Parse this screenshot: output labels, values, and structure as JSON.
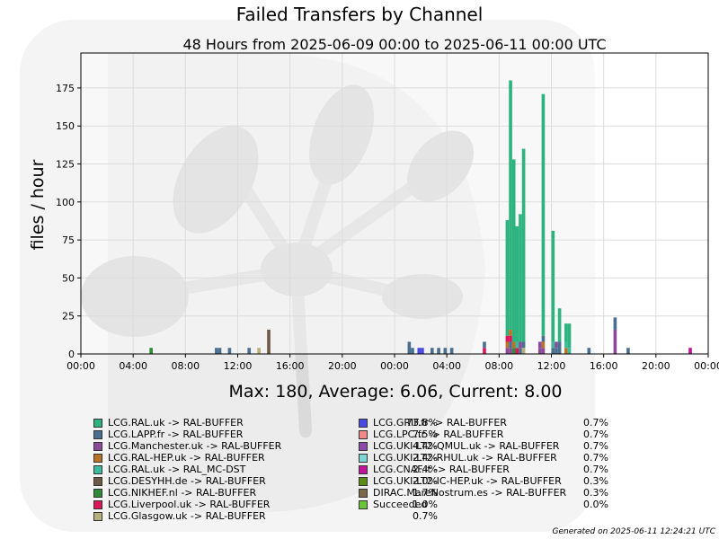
{
  "page": {
    "footer": "Generated on 2025-06-11 12:24:21 UTC",
    "stats_text": "Max: 180, Average: 6.06, Current: 8.00"
  },
  "chart_data": {
    "type": "bar",
    "stacked": true,
    "title": "Failed Transfers by Channel",
    "subtitle": "48 Hours from 2025-06-09 00:00 to 2025-06-11 00:00 UTC",
    "ylabel": "files / hour",
    "xlabel": "",
    "ylim": [
      0,
      198
    ],
    "yticks": [
      0,
      25,
      50,
      75,
      100,
      125,
      150,
      175
    ],
    "xlim": [
      0,
      48
    ],
    "xticks": [
      0,
      4,
      8,
      12,
      16,
      20,
      24,
      28,
      32,
      36,
      40,
      44,
      48
    ],
    "xtick_labels": [
      "00:00",
      "04:00",
      "08:00",
      "12:00",
      "16:00",
      "20:00",
      "00:00",
      "04:00",
      "08:00",
      "12:00",
      "16:00",
      "20:00",
      "00:00"
    ],
    "bin_hours": 0.25,
    "grid": true,
    "summary": {
      "max": 180,
      "average": 6.06,
      "current": 8.0
    },
    "legend": [
      {
        "label": "LCG.RAL.uk -> RAL-BUFFER",
        "percent": "73.8%",
        "color": "#2db37f"
      },
      {
        "label": "LCG.LAPP.fr -> RAL-BUFFER",
        "percent": "7.5%",
        "color": "#4a6f91"
      },
      {
        "label": "LCG.Manchester.uk -> RAL-BUFFER",
        "percent": "4.4%",
        "color": "#8a4a97"
      },
      {
        "label": "LCG.RAL-HEP.uk -> RAL-BUFFER",
        "percent": "2.4%",
        "color": "#b87324"
      },
      {
        "label": "LCG.RAL.uk -> RAL_MC-DST",
        "percent": "2.4%",
        "color": "#3cba9d"
      },
      {
        "label": "LCG.DESYHH.de -> RAL-BUFFER",
        "percent": "2.0%",
        "color": "#6f5a48"
      },
      {
        "label": "LCG.NIKHEF.nl -> RAL-BUFFER",
        "percent": "1.7%",
        "color": "#2e8b3a"
      },
      {
        "label": "LCG.Liverpool.uk -> RAL-BUFFER",
        "percent": "1.0%",
        "color": "#e0145a"
      },
      {
        "label": "LCG.Glasgow.uk -> RAL-BUFFER",
        "percent": "0.7%",
        "color": "#b8b07c"
      },
      {
        "label": "LCG.GRIF.fr -> RAL-BUFFER",
        "percent": "0.7%",
        "color": "#4a4ae0"
      },
      {
        "label": "LCG.LPC.fr -> RAL-BUFFER",
        "percent": "0.7%",
        "color": "#f08a8a"
      },
      {
        "label": "LCG.UKI-LT2-QMUL.uk -> RAL-BUFFER",
        "percent": "0.7%",
        "color": "#8a4aa8"
      },
      {
        "label": "LCG.UKI-LT2-RHUL.uk -> RAL-BUFFER",
        "percent": "0.7%",
        "color": "#7fd4d4"
      },
      {
        "label": "LCG.CNAF.it -> RAL-BUFFER",
        "percent": "0.7%",
        "color": "#c0149a"
      },
      {
        "label": "LCG.UKI-LT2-IC-HEP.uk -> RAL-BUFFER",
        "percent": "0.3%",
        "color": "#5a8a1a"
      },
      {
        "label": "DIRAC.MareNostrum.es -> RAL-BUFFER",
        "percent": "0.3%",
        "color": "#7a6a4a"
      },
      {
        "label": "Succeeded",
        "percent": "0.0%",
        "color": "#6cc23a"
      }
    ],
    "bars": [
      {
        "t": 5.25,
        "segs": [
          [
            6,
            4
          ]
        ]
      },
      {
        "t": 10.25,
        "segs": [
          [
            1,
            4
          ]
        ]
      },
      {
        "t": 10.5,
        "segs": [
          [
            1,
            4
          ]
        ]
      },
      {
        "t": 11.25,
        "segs": [
          [
            1,
            4
          ]
        ]
      },
      {
        "t": 12.75,
        "segs": [
          [
            1,
            4
          ]
        ]
      },
      {
        "t": 13.5,
        "segs": [
          [
            8,
            4
          ]
        ]
      },
      {
        "t": 14.25,
        "segs": [
          [
            5,
            16
          ]
        ]
      },
      {
        "t": 25.0,
        "segs": [
          [
            1,
            8
          ]
        ]
      },
      {
        "t": 25.25,
        "segs": [
          [
            1,
            4
          ]
        ]
      },
      {
        "t": 25.75,
        "segs": [
          [
            9,
            4
          ]
        ]
      },
      {
        "t": 26.0,
        "segs": [
          [
            9,
            4
          ]
        ]
      },
      {
        "t": 26.75,
        "segs": [
          [
            1,
            4
          ]
        ]
      },
      {
        "t": 27.25,
        "segs": [
          [
            1,
            4
          ]
        ]
      },
      {
        "t": 27.75,
        "segs": [
          [
            1,
            4
          ]
        ]
      },
      {
        "t": 28.25,
        "segs": [
          [
            1,
            4
          ]
        ]
      },
      {
        "t": 30.75,
        "segs": [
          [
            7,
            4
          ],
          [
            1,
            4
          ]
        ]
      },
      {
        "t": 32.5,
        "segs": [
          [
            2,
            4
          ],
          [
            3,
            4
          ],
          [
            7,
            4
          ],
          [
            0,
            76
          ]
        ]
      },
      {
        "t": 32.75,
        "segs": [
          [
            2,
            4
          ],
          [
            1,
            4
          ],
          [
            7,
            4
          ],
          [
            3,
            4
          ],
          [
            0,
            164
          ]
        ]
      },
      {
        "t": 33.0,
        "segs": [
          [
            6,
            4
          ],
          [
            3,
            4
          ],
          [
            0,
            120
          ]
        ]
      },
      {
        "t": 33.25,
        "segs": [
          [
            7,
            4
          ],
          [
            4,
            4
          ],
          [
            0,
            76
          ]
        ]
      },
      {
        "t": 33.5,
        "segs": [
          [
            1,
            4
          ],
          [
            2,
            4
          ],
          [
            0,
            84
          ]
        ]
      },
      {
        "t": 33.75,
        "segs": [
          [
            8,
            4
          ],
          [
            1,
            4
          ],
          [
            0,
            127
          ]
        ]
      },
      {
        "t": 35.0,
        "segs": [
          [
            2,
            4
          ],
          [
            11,
            4
          ]
        ]
      },
      {
        "t": 35.25,
        "segs": [
          [
            2,
            4
          ],
          [
            3,
            4
          ],
          [
            1,
            4
          ],
          [
            0,
            159
          ]
        ]
      },
      {
        "t": 36.0,
        "segs": [
          [
            1,
            4
          ],
          [
            4,
            4
          ],
          [
            0,
            73
          ]
        ]
      },
      {
        "t": 36.25,
        "segs": [
          [
            1,
            4
          ],
          [
            2,
            4
          ]
        ]
      },
      {
        "t": 36.5,
        "segs": [
          [
            1,
            8
          ],
          [
            0,
            22
          ]
        ]
      },
      {
        "t": 37.0,
        "segs": [
          [
            3,
            4
          ],
          [
            4,
            4
          ],
          [
            0,
            12
          ]
        ]
      },
      {
        "t": 37.25,
        "segs": [
          [
            4,
            4
          ],
          [
            0,
            16
          ]
        ]
      },
      {
        "t": 38.75,
        "segs": [
          [
            1,
            4
          ]
        ]
      },
      {
        "t": 40.75,
        "segs": [
          [
            2,
            16
          ],
          [
            1,
            8
          ]
        ]
      },
      {
        "t": 41.75,
        "segs": [
          [
            1,
            4
          ]
        ]
      },
      {
        "t": 46.5,
        "segs": [
          [
            13,
            4
          ]
        ]
      }
    ]
  }
}
